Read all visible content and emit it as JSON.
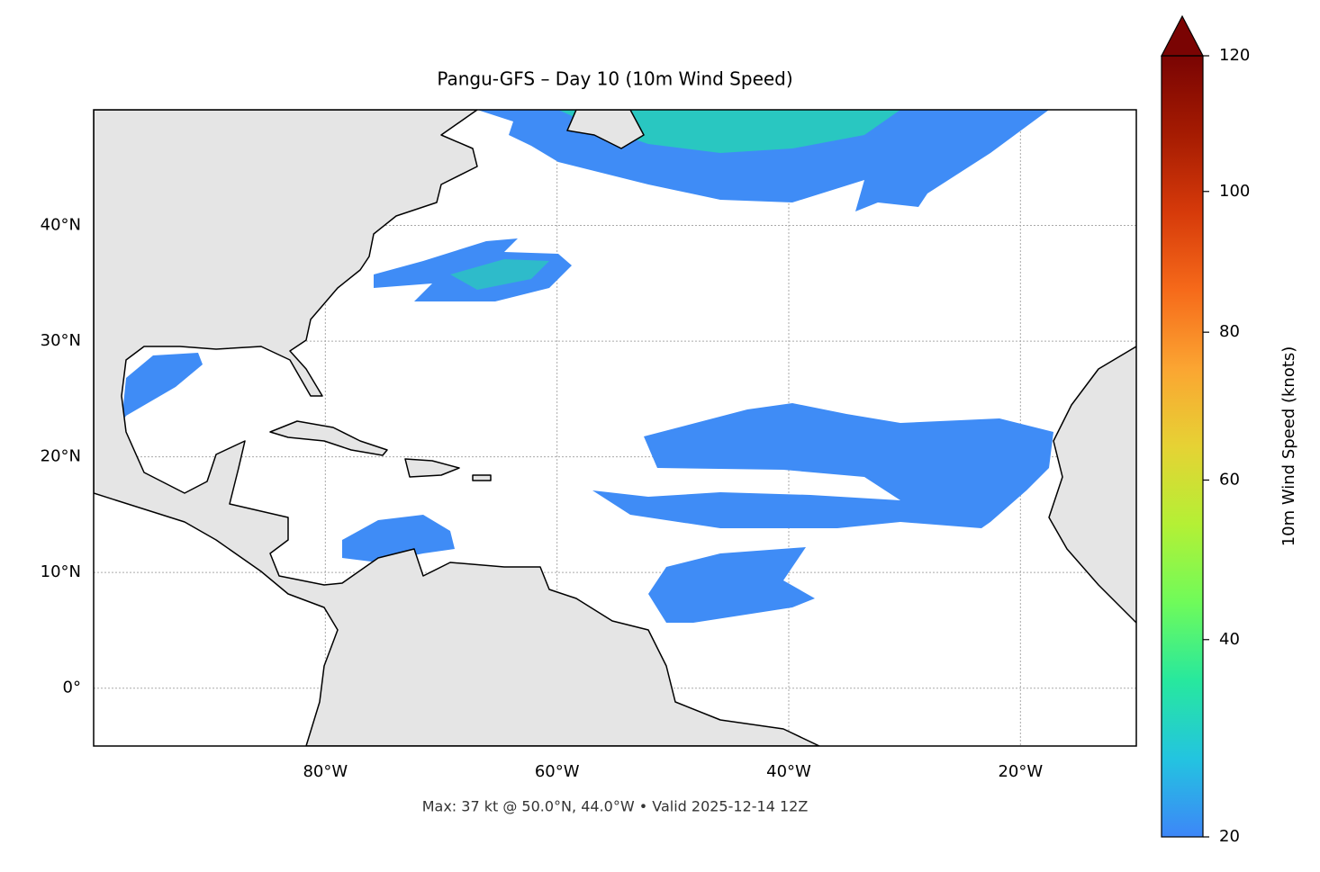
{
  "chart_data": {
    "type": "map",
    "title": "Pangu-GFS – Day 10 (10m Wind Speed)",
    "annotation": "Max: 37 kt @ 50.0°N, 44.0°W • Valid 2025-12-14 12Z",
    "xlim": [
      -100,
      -10
    ],
    "ylim": [
      -5,
      50
    ],
    "xticks": [
      {
        "value": -80,
        "label": "80°W"
      },
      {
        "value": -60,
        "label": "60°W"
      },
      {
        "value": -40,
        "label": "40°W"
      },
      {
        "value": -20,
        "label": "20°W"
      }
    ],
    "yticks": [
      {
        "value": 0,
        "label": "0°"
      },
      {
        "value": 10,
        "label": "10°N"
      },
      {
        "value": 20,
        "label": "20°N"
      },
      {
        "value": 30,
        "label": "30°N"
      },
      {
        "value": 40,
        "label": "40°N"
      }
    ],
    "grid": true,
    "colorbar": {
      "label": "10m Wind Speed (knots)",
      "lim": [
        20,
        120
      ],
      "ticks": [
        20,
        40,
        60,
        80,
        100,
        120
      ],
      "norm": "power",
      "gamma": 0.855,
      "extend": "max",
      "colormap": [
        "#3d86f8",
        "#23c4e0",
        "#27e89e",
        "#6ffb5a",
        "#b4f035",
        "#e6d234",
        "#fba532",
        "#f66a1a",
        "#d63a0a",
        "#a51b02",
        "#7a0403"
      ]
    }
  }
}
